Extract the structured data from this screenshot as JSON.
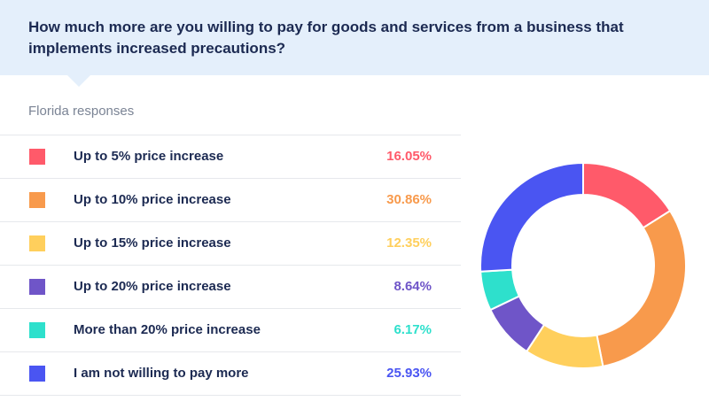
{
  "header": {
    "question": "How much more are you willing to pay for goods and services from a business that implements increased precautions?"
  },
  "subtitle": "Florida responses",
  "chart_data": {
    "type": "pie",
    "style": "donut",
    "title": "How much more are you willing to pay for goods and services from a business that implements increased precautions?",
    "subtitle": "Florida responses",
    "categories": [
      "Up to 5% price increase",
      "Up to 10% price increase",
      "Up to 15% price increase",
      "Up to 20% price increase",
      "More than 20% price increase",
      "I am not willing to pay more"
    ],
    "values": [
      16.05,
      30.86,
      12.35,
      8.64,
      6.17,
      25.93
    ],
    "labels": [
      "16.05%",
      "30.86%",
      "12.35%",
      "8.64%",
      "6.17%",
      "25.93%"
    ],
    "colors": [
      "#ff5a6a",
      "#f89a4c",
      "#ffcf5c",
      "#6f55c8",
      "#2ee0cc",
      "#4a55f2"
    ],
    "legend": "left"
  }
}
